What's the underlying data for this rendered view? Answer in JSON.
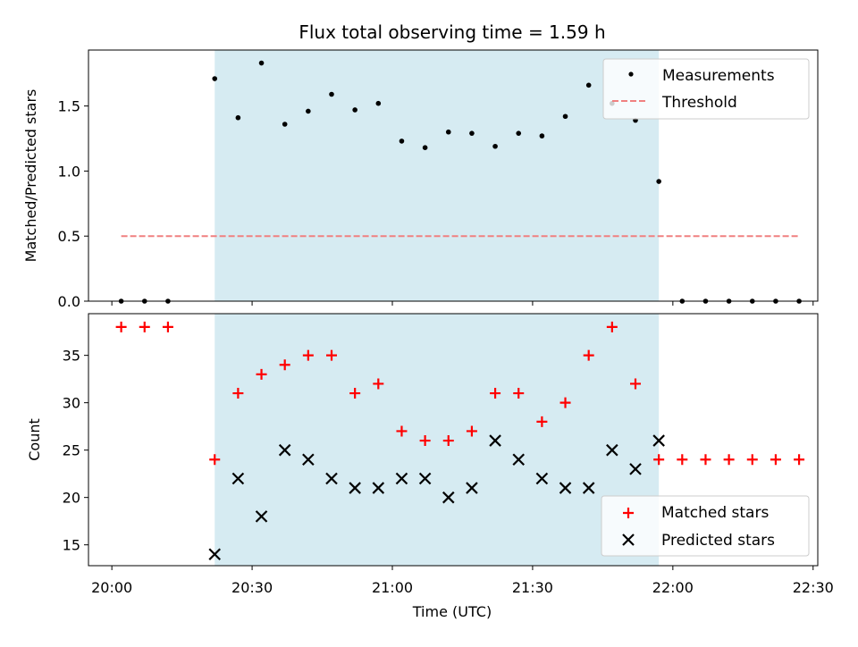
{
  "title": "Flux total observing time = 1.59 h",
  "colors": {
    "highlight": "#add8e6",
    "measurement": "#000000",
    "threshold": "#f08080",
    "matched": "#ff0000",
    "predicted": "#000000"
  },
  "chart_data": [
    {
      "type": "scatter",
      "panel": "top",
      "title": "Flux total observing time = 1.59 h",
      "xlabel": "",
      "ylabel": "Matched/Predicted stars",
      "ylim": [
        0,
        1.93
      ],
      "yticks": [
        0.0,
        0.5,
        1.0,
        1.5
      ],
      "ytick_labels": [
        "0.0",
        "0.5",
        "1.0",
        "1.5"
      ],
      "xlim": [
        "19:55",
        "22:31"
      ],
      "xticks": [
        "20:00",
        "20:30",
        "21:00",
        "21:30",
        "22:00",
        "22:30"
      ],
      "highlight_span": [
        "20:22",
        "21:57"
      ],
      "legend_position": "top-right",
      "series": [
        {
          "name": "Measurements",
          "marker": "dot",
          "points": [
            {
              "x": "20:02",
              "y": 0.0
            },
            {
              "x": "20:07",
              "y": 0.0
            },
            {
              "x": "20:12",
              "y": 0.0
            },
            {
              "x": "20:22",
              "y": 1.71
            },
            {
              "x": "20:27",
              "y": 1.41
            },
            {
              "x": "20:32",
              "y": 1.83
            },
            {
              "x": "20:37",
              "y": 1.36
            },
            {
              "x": "20:42",
              "y": 1.46
            },
            {
              "x": "20:47",
              "y": 1.59
            },
            {
              "x": "20:52",
              "y": 1.47
            },
            {
              "x": "20:57",
              "y": 1.52
            },
            {
              "x": "21:02",
              "y": 1.23
            },
            {
              "x": "21:07",
              "y": 1.18
            },
            {
              "x": "21:12",
              "y": 1.3
            },
            {
              "x": "21:17",
              "y": 1.29
            },
            {
              "x": "21:22",
              "y": 1.19
            },
            {
              "x": "21:27",
              "y": 1.29
            },
            {
              "x": "21:32",
              "y": 1.27
            },
            {
              "x": "21:37",
              "y": 1.42
            },
            {
              "x": "21:42",
              "y": 1.66
            },
            {
              "x": "21:47",
              "y": 1.52
            },
            {
              "x": "21:52",
              "y": 1.39
            },
            {
              "x": "21:57",
              "y": 0.92
            },
            {
              "x": "22:02",
              "y": 0.0
            },
            {
              "x": "22:07",
              "y": 0.0
            },
            {
              "x": "22:12",
              "y": 0.0
            },
            {
              "x": "22:17",
              "y": 0.0
            },
            {
              "x": "22:22",
              "y": 0.0
            },
            {
              "x": "22:27",
              "y": 0.0
            }
          ]
        },
        {
          "name": "Threshold",
          "marker": "dashed-line",
          "points": [
            {
              "x": "20:02",
              "y": 0.5
            },
            {
              "x": "22:27",
              "y": 0.5
            }
          ]
        }
      ]
    },
    {
      "type": "scatter",
      "panel": "bottom",
      "xlabel": "Time (UTC)",
      "ylabel": "Count",
      "ylim": [
        12.8,
        39.4
      ],
      "yticks": [
        15,
        20,
        25,
        30,
        35
      ],
      "ytick_labels": [
        "15",
        "20",
        "25",
        "30",
        "35"
      ],
      "xlim": [
        "19:55",
        "22:31"
      ],
      "xticks": [
        "20:00",
        "20:30",
        "21:00",
        "21:30",
        "22:00",
        "22:30"
      ],
      "xtick_labels": [
        "20:00",
        "20:30",
        "21:00",
        "21:30",
        "22:00",
        "22:30"
      ],
      "highlight_span": [
        "20:22",
        "21:57"
      ],
      "legend_position": "bottom-right",
      "series": [
        {
          "name": "Matched stars",
          "marker": "plus",
          "points": [
            {
              "x": "20:02",
              "y": 38
            },
            {
              "x": "20:07",
              "y": 38
            },
            {
              "x": "20:12",
              "y": 38
            },
            {
              "x": "20:22",
              "y": 24
            },
            {
              "x": "20:27",
              "y": 31
            },
            {
              "x": "20:32",
              "y": 33
            },
            {
              "x": "20:37",
              "y": 34
            },
            {
              "x": "20:42",
              "y": 35
            },
            {
              "x": "20:47",
              "y": 35
            },
            {
              "x": "20:52",
              "y": 31
            },
            {
              "x": "20:57",
              "y": 32
            },
            {
              "x": "21:02",
              "y": 27
            },
            {
              "x": "21:07",
              "y": 26
            },
            {
              "x": "21:12",
              "y": 26
            },
            {
              "x": "21:17",
              "y": 27
            },
            {
              "x": "21:22",
              "y": 31
            },
            {
              "x": "21:27",
              "y": 31
            },
            {
              "x": "21:32",
              "y": 28
            },
            {
              "x": "21:37",
              "y": 30
            },
            {
              "x": "21:42",
              "y": 35
            },
            {
              "x": "21:47",
              "y": 38
            },
            {
              "x": "21:52",
              "y": 32
            },
            {
              "x": "21:57",
              "y": 24
            },
            {
              "x": "22:02",
              "y": 24
            },
            {
              "x": "22:07",
              "y": 24
            },
            {
              "x": "22:12",
              "y": 24
            },
            {
              "x": "22:17",
              "y": 24
            },
            {
              "x": "22:22",
              "y": 24
            },
            {
              "x": "22:27",
              "y": 24
            }
          ]
        },
        {
          "name": "Predicted stars",
          "marker": "x",
          "points": [
            {
              "x": "20:22",
              "y": 14
            },
            {
              "x": "20:27",
              "y": 22
            },
            {
              "x": "20:32",
              "y": 18
            },
            {
              "x": "20:37",
              "y": 25
            },
            {
              "x": "20:42",
              "y": 24
            },
            {
              "x": "20:47",
              "y": 22
            },
            {
              "x": "20:52",
              "y": 21
            },
            {
              "x": "20:57",
              "y": 21
            },
            {
              "x": "21:02",
              "y": 22
            },
            {
              "x": "21:07",
              "y": 22
            },
            {
              "x": "21:12",
              "y": 20
            },
            {
              "x": "21:17",
              "y": 21
            },
            {
              "x": "21:22",
              "y": 26
            },
            {
              "x": "21:27",
              "y": 24
            },
            {
              "x": "21:32",
              "y": 22
            },
            {
              "x": "21:37",
              "y": 21
            },
            {
              "x": "21:42",
              "y": 21
            },
            {
              "x": "21:47",
              "y": 25
            },
            {
              "x": "21:52",
              "y": 23
            },
            {
              "x": "21:57",
              "y": 26
            }
          ]
        }
      ]
    }
  ]
}
